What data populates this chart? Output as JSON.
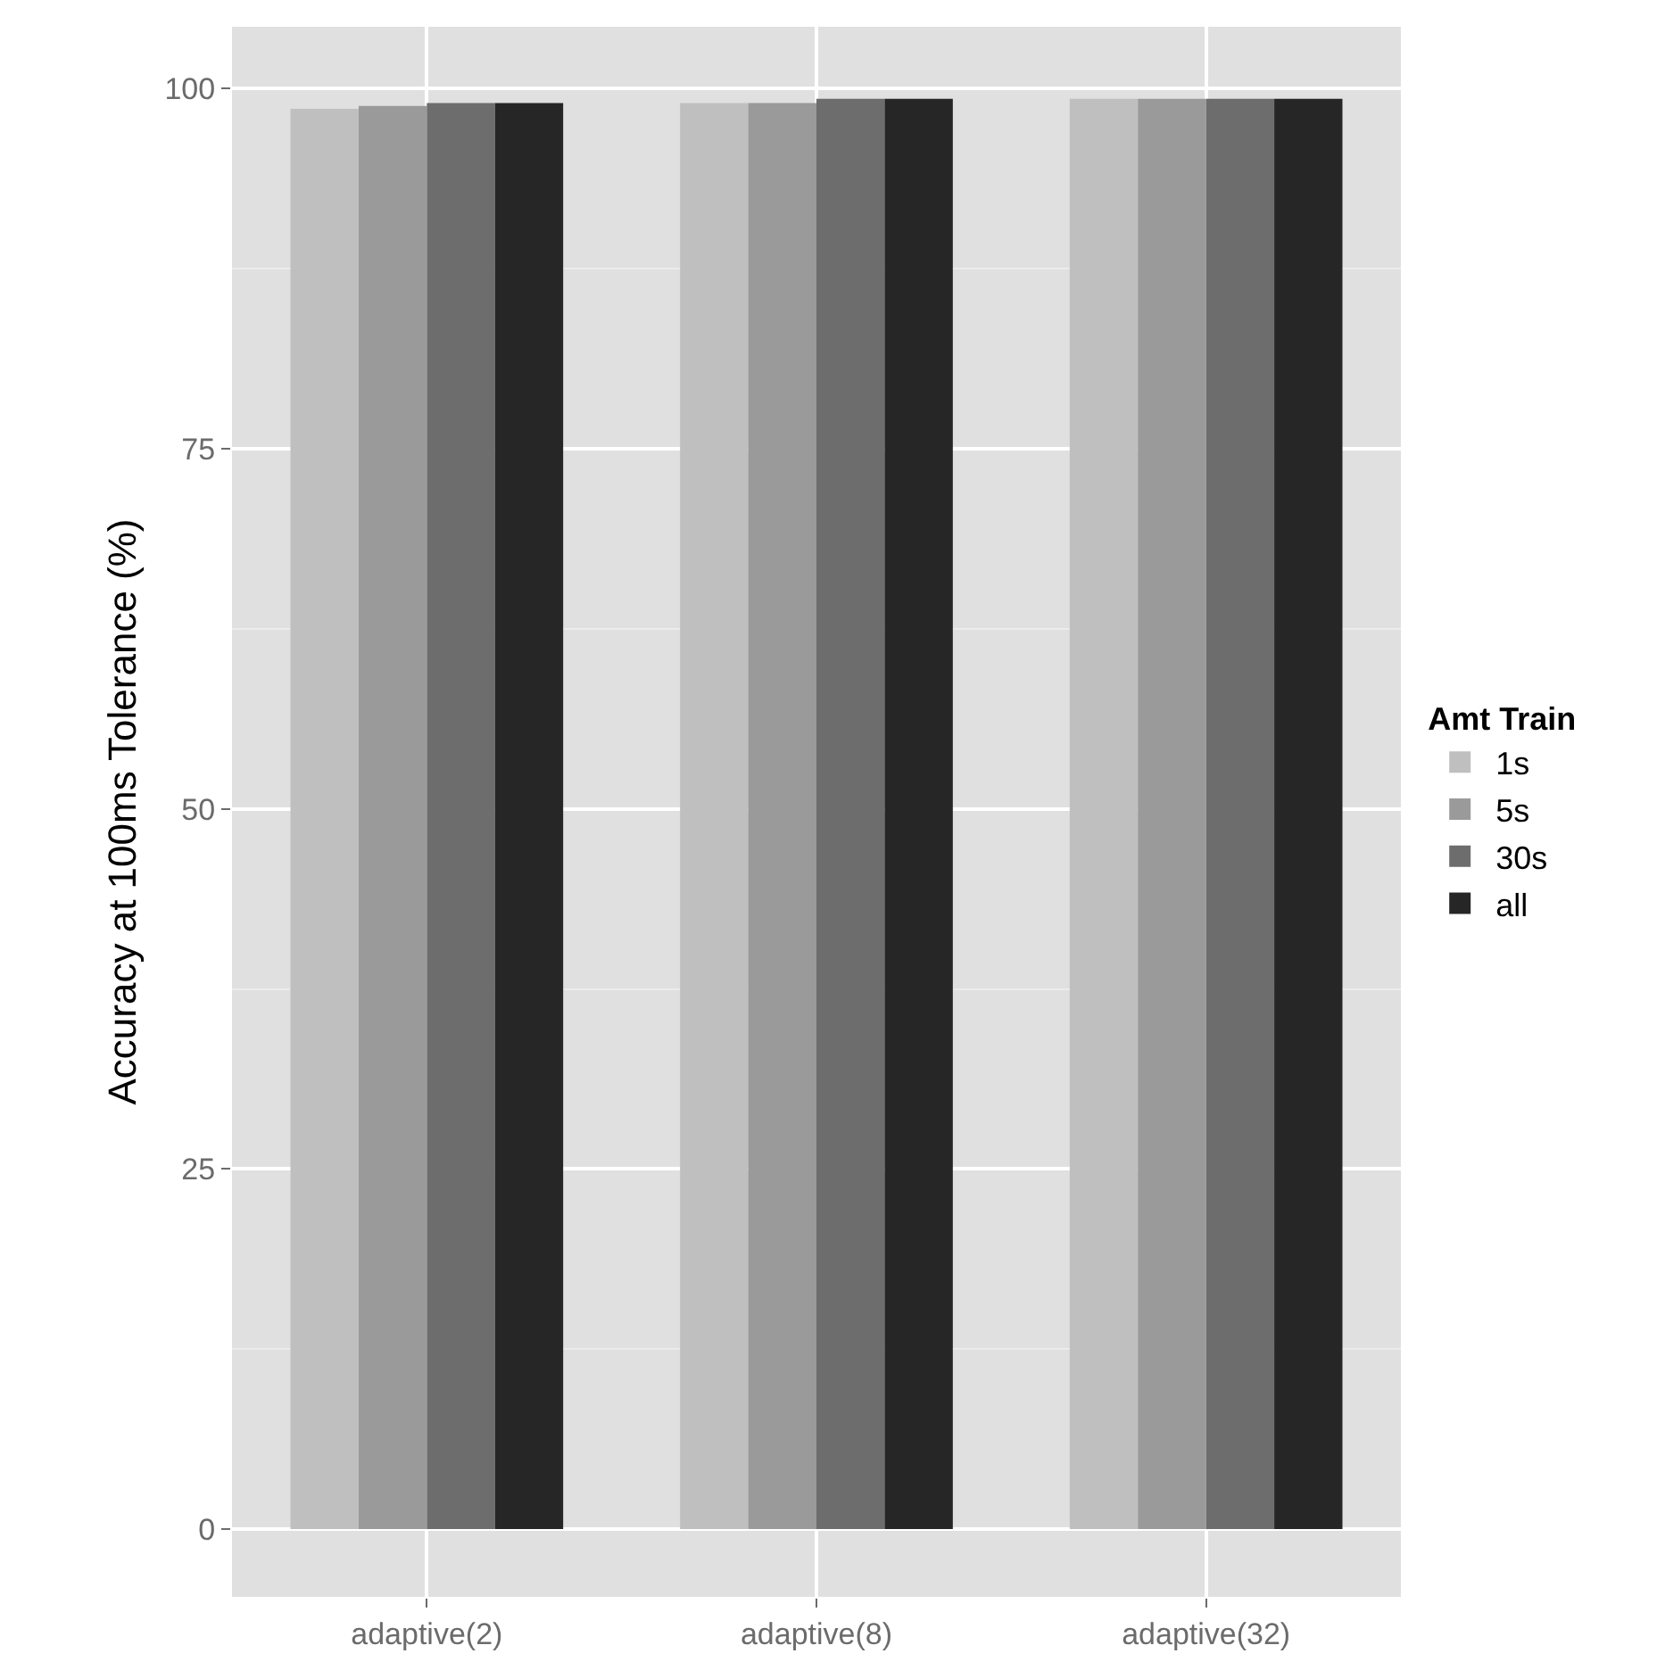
{
  "chart_data": {
    "type": "bar",
    "ylabel": "Accuracy at 100ms Tolerance (%)",
    "legend_title": "Amt Train",
    "categories": [
      "adaptive(2)",
      "adaptive(8)",
      "adaptive(32)"
    ],
    "series": [
      {
        "name": "1s",
        "color": "#bfbfbf",
        "values": [
          98.6,
          99.0,
          99.3
        ]
      },
      {
        "name": "5s",
        "color": "#9a9a9a",
        "values": [
          98.8,
          99.0,
          99.3
        ]
      },
      {
        "name": "30s",
        "color": "#6d6d6d",
        "values": [
          99.0,
          99.3,
          99.3
        ]
      },
      {
        "name": "all",
        "color": "#262626",
        "values": [
          99.0,
          99.3,
          99.3
        ]
      }
    ],
    "ylim": [
      -4.7,
      104.3
    ],
    "yticks": [
      0,
      25,
      50,
      75,
      100
    ],
    "grid": true,
    "legend": "right"
  }
}
